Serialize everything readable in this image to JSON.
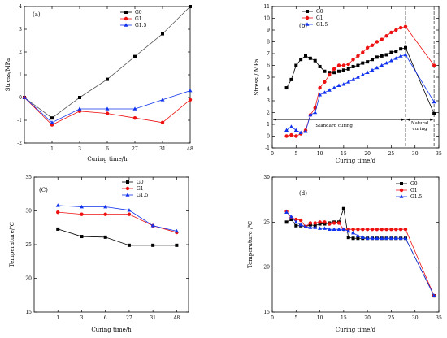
{
  "colors": {
    "G0": "#000000",
    "G1": "#ee1111",
    "G1.5": "#1133ee",
    "G0_line_a": "#555555"
  },
  "chart_data": [
    {
      "id": "a",
      "type": "line",
      "panel_label": "(a)",
      "xlabel": "Curing time/h",
      "ylabel": "Stress/MPa",
      "x_scale": "categorical",
      "categories": [
        "1",
        "3",
        "6",
        "27",
        "31",
        "48"
      ],
      "x_positions": [
        0,
        1,
        2,
        3,
        4,
        5,
        6
      ],
      "ylim": [
        -2,
        4
      ],
      "yticks": [
        "-2",
        "-1",
        "0",
        "1",
        "2",
        "3",
        "4"
      ],
      "legend_position": "top-right",
      "series": [
        {
          "name": "G0",
          "marker": "square",
          "x": [
            0,
            1,
            2,
            3,
            4,
            5,
            6
          ],
          "values": [
            0,
            -0.9,
            0,
            0.8,
            1.8,
            2.8,
            4.0
          ]
        },
        {
          "name": "G1",
          "marker": "circle",
          "x": [
            0,
            1,
            2,
            3,
            4,
            5,
            6
          ],
          "values": [
            0,
            -1.2,
            -0.6,
            -0.7,
            -0.9,
            -1.1,
            -0.1
          ]
        },
        {
          "name": "G1.5",
          "marker": "triangle",
          "x": [
            0,
            1,
            2,
            3,
            4,
            5,
            6
          ],
          "values": [
            0,
            -1.1,
            -0.5,
            -0.5,
            -0.5,
            -0.1,
            0.3
          ]
        }
      ]
    },
    {
      "id": "b",
      "type": "line",
      "panel_label": "(b)",
      "xlabel": "Curing time/d",
      "ylabel": "Stress / MPa",
      "xlim": [
        0,
        35
      ],
      "xticks": [
        "0",
        "5",
        "10",
        "15",
        "20",
        "25",
        "30",
        "35"
      ],
      "ylim": [
        -1,
        11
      ],
      "yticks": [
        "-1",
        "0",
        "1",
        "2",
        "3",
        "4",
        "5",
        "6",
        "7",
        "8",
        "9",
        "10",
        "11"
      ],
      "legend_position": "top-left",
      "annotations": {
        "standard": "Standard curing",
        "natural_1": "Natural",
        "natural_2": "curing",
        "arrow_y": 1.4,
        "vlines": [
          28,
          34
        ]
      },
      "series": [
        {
          "name": "G0",
          "marker": "square",
          "x": [
            3,
            4,
            5,
            6,
            7,
            8,
            9,
            10,
            11,
            12,
            13,
            14,
            15,
            16,
            17,
            18,
            19,
            20,
            21,
            22,
            23,
            24,
            25,
            26,
            27,
            28,
            34
          ],
          "values": [
            4.1,
            4.8,
            6.0,
            6.5,
            6.8,
            6.6,
            6.4,
            5.9,
            5.5,
            5.4,
            5.4,
            5.5,
            5.6,
            5.7,
            5.9,
            6.0,
            6.2,
            6.3,
            6.5,
            6.7,
            6.8,
            6.9,
            7.1,
            7.2,
            7.4,
            7.5,
            1.9
          ]
        },
        {
          "name": "G1",
          "marker": "circle",
          "x": [
            3,
            4,
            5,
            6,
            7,
            8,
            9,
            10,
            11,
            12,
            13,
            14,
            15,
            16,
            17,
            18,
            19,
            20,
            21,
            22,
            23,
            24,
            25,
            26,
            27,
            28,
            34
          ],
          "values": [
            0.0,
            0.1,
            0.0,
            0.2,
            0.5,
            1.8,
            2.4,
            4.1,
            4.6,
            5.2,
            5.7,
            6.0,
            6.0,
            6.1,
            6.5,
            6.8,
            7.1,
            7.5,
            7.7,
            8.0,
            8.2,
            8.5,
            8.8,
            9.0,
            9.2,
            9.3,
            6.0
          ]
        },
        {
          "name": "G1.5",
          "marker": "triangle",
          "x": [
            3,
            4,
            5,
            6,
            7,
            8,
            9,
            10,
            11,
            12,
            13,
            14,
            15,
            16,
            17,
            18,
            19,
            20,
            21,
            22,
            23,
            24,
            25,
            26,
            27,
            28,
            34
          ],
          "values": [
            0.5,
            0.8,
            0.5,
            0.3,
            0.4,
            1.8,
            2.0,
            3.5,
            3.7,
            3.9,
            4.1,
            4.3,
            4.4,
            4.6,
            4.8,
            5.0,
            5.2,
            5.4,
            5.6,
            5.8,
            6.0,
            6.2,
            6.4,
            6.6,
            6.8,
            6.9,
            2.9
          ]
        }
      ]
    },
    {
      "id": "c",
      "type": "line",
      "panel_label": "(C)",
      "xlabel": "Curing time/h",
      "ylabel": "Temperature/℃",
      "x_scale": "categorical",
      "categories": [
        "1",
        "3",
        "6",
        "27",
        "31",
        "48"
      ],
      "x_positions": [
        1,
        2,
        3,
        4,
        5,
        6
      ],
      "ylim": [
        15,
        35
      ],
      "yticks": [
        "15",
        "20",
        "25",
        "30",
        "35"
      ],
      "legend_position": "top-right",
      "series": [
        {
          "name": "G0",
          "marker": "square",
          "x": [
            1,
            2,
            3,
            4,
            5,
            6
          ],
          "values": [
            27.3,
            26.2,
            26.1,
            24.9,
            24.9,
            24.9
          ]
        },
        {
          "name": "G1",
          "marker": "circle",
          "x": [
            1,
            2,
            3,
            4,
            5,
            6
          ],
          "values": [
            29.8,
            29.5,
            29.5,
            29.5,
            27.8,
            26.8
          ]
        },
        {
          "name": "G1.5",
          "marker": "triangle",
          "x": [
            1,
            2,
            3,
            4,
            5,
            6
          ],
          "values": [
            30.8,
            30.6,
            30.6,
            30.1,
            27.8,
            27.0
          ]
        }
      ]
    },
    {
      "id": "d",
      "type": "line",
      "panel_label": "(d)",
      "xlabel": "Curing time/d",
      "ylabel": "Temperature /℃",
      "xlim": [
        0,
        35
      ],
      "xticks": [
        "0",
        "5",
        "10",
        "15",
        "20",
        "25",
        "30",
        "35"
      ],
      "ylim": [
        15,
        30
      ],
      "yticks": [
        "15",
        "20",
        "25",
        "30"
      ],
      "legend_position": "top-right",
      "series": [
        {
          "name": "G0",
          "marker": "square",
          "x": [
            3,
            4,
            5,
            6,
            7,
            8,
            9,
            10,
            11,
            12,
            13,
            14,
            15,
            16,
            17,
            18,
            19,
            20,
            21,
            22,
            23,
            24,
            25,
            26,
            27,
            28,
            34
          ],
          "values": [
            25.0,
            25.3,
            24.6,
            24.6,
            24.5,
            24.7,
            24.6,
            24.8,
            24.8,
            24.9,
            25.0,
            25.0,
            26.5,
            23.3,
            23.2,
            23.2,
            23.2,
            23.2,
            23.2,
            23.2,
            23.2,
            23.2,
            23.2,
            23.2,
            23.2,
            23.2,
            16.8
          ]
        },
        {
          "name": "G1",
          "marker": "circle",
          "x": [
            3,
            4,
            5,
            6,
            7,
            8,
            9,
            10,
            11,
            12,
            13,
            14,
            15,
            16,
            17,
            18,
            19,
            20,
            21,
            22,
            23,
            24,
            25,
            26,
            27,
            28,
            34
          ],
          "values": [
            26.2,
            25.5,
            25.3,
            25.2,
            24.5,
            24.9,
            24.9,
            25.0,
            25.0,
            24.8,
            24.9,
            24.9,
            24.2,
            24.2,
            24.2,
            24.2,
            24.2,
            24.2,
            24.2,
            24.2,
            24.2,
            24.2,
            24.2,
            24.2,
            24.2,
            24.2,
            16.8
          ]
        },
        {
          "name": "G1.5",
          "marker": "triangle",
          "x": [
            3,
            4,
            5,
            6,
            7,
            8,
            9,
            10,
            11,
            12,
            13,
            14,
            15,
            16,
            17,
            18,
            19,
            20,
            21,
            22,
            23,
            24,
            25,
            26,
            27,
            28,
            34
          ],
          "values": [
            26.1,
            25.6,
            25.0,
            24.7,
            24.5,
            24.4,
            24.4,
            24.3,
            24.3,
            24.2,
            24.2,
            24.2,
            24.2,
            24.0,
            23.8,
            23.5,
            23.3,
            23.2,
            23.2,
            23.2,
            23.2,
            23.2,
            23.2,
            23.2,
            23.2,
            23.2,
            16.8
          ]
        }
      ]
    }
  ]
}
